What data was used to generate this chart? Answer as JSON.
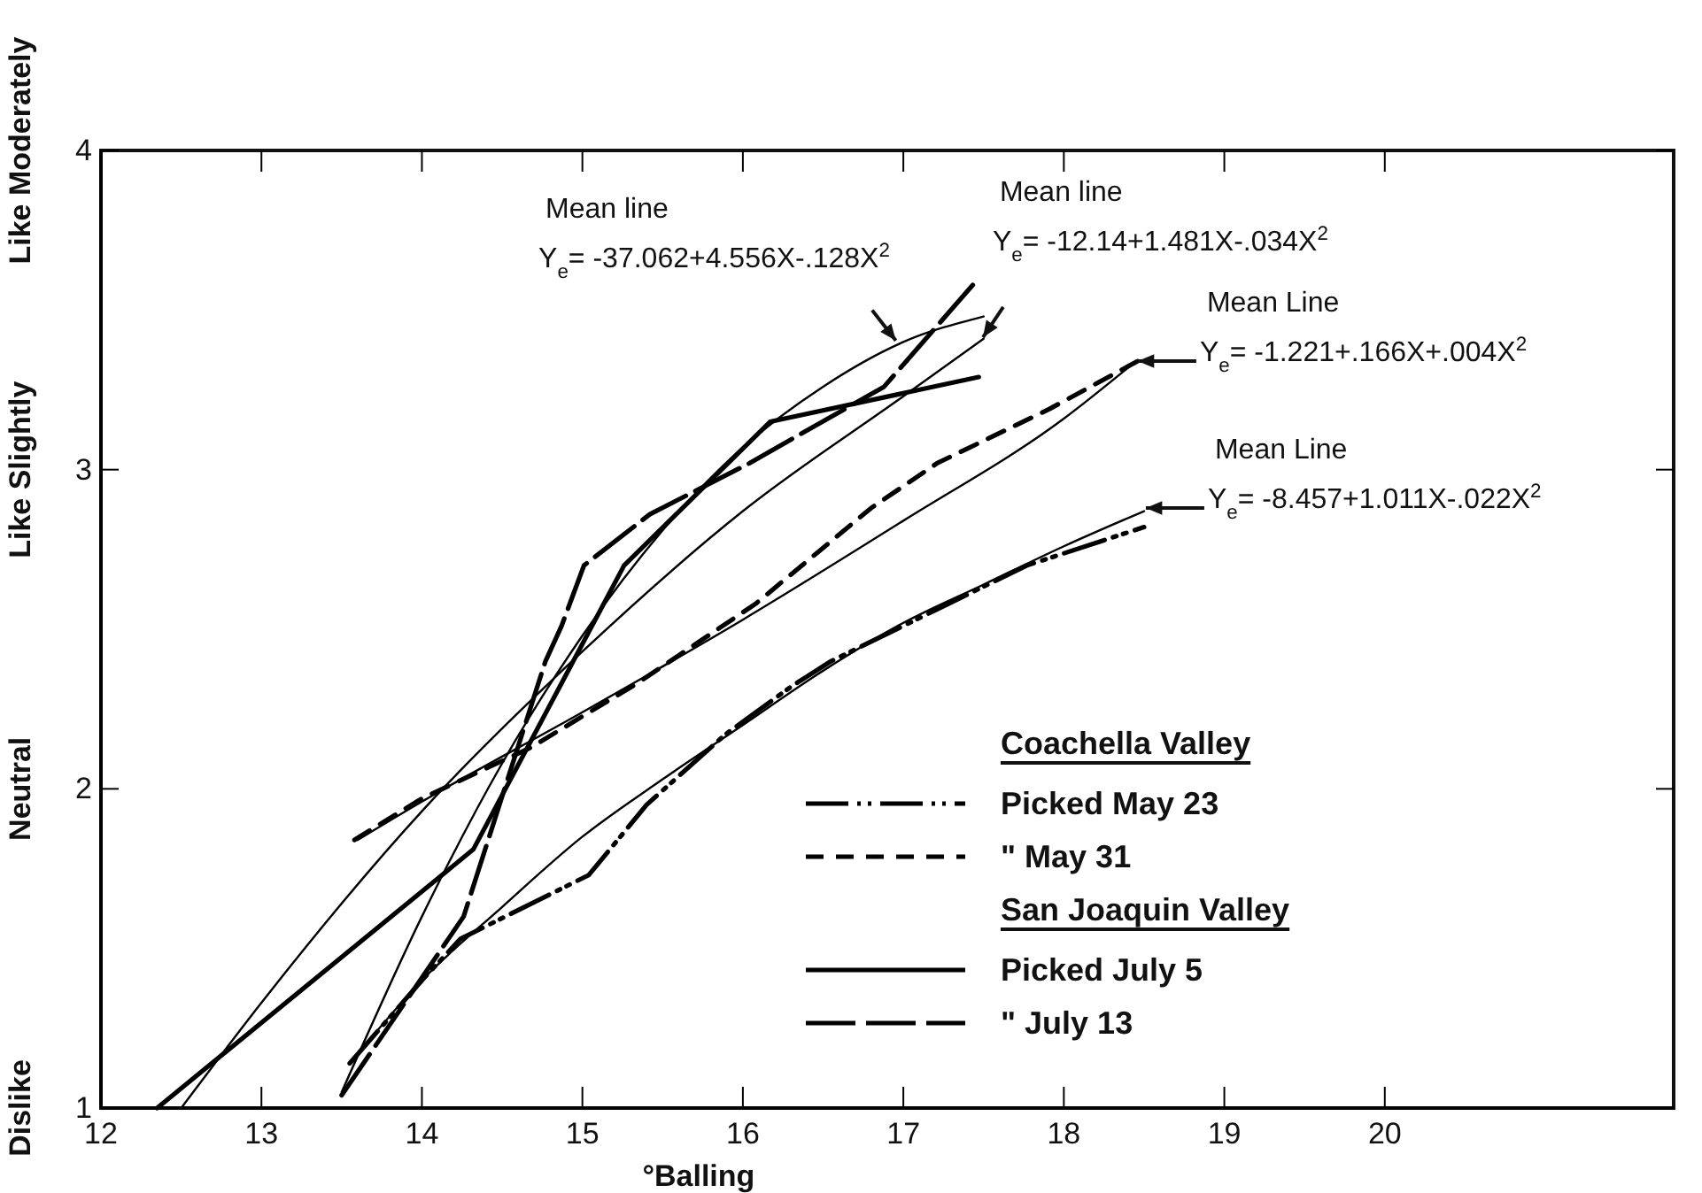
{
  "chart_data": {
    "type": "line",
    "xlabel": "°Balling",
    "xlim": [
      12,
      21.8
    ],
    "xticks": [
      12,
      13,
      14,
      15,
      16,
      17,
      18,
      19,
      20
    ],
    "ylim": [
      1,
      4
    ],
    "yticks": [
      1,
      2,
      3,
      4
    ],
    "grid": false,
    "marker": "none",
    "legend": "bottom right",
    "series": [
      {
        "name": "Picked May 23",
        "color": "#000000",
        "line_style": "dashdotdot",
        "x": [
          13.55,
          14.0,
          14.24,
          14.6,
          15.04,
          15.4,
          15.89,
          16.3,
          16.55,
          17.2,
          17.77,
          18.5
        ],
        "values": [
          1.14,
          1.4,
          1.53,
          1.62,
          1.73,
          1.95,
          2.17,
          2.32,
          2.4,
          2.56,
          2.7,
          2.82
        ]
      },
      {
        "name": "\" May 31",
        "color": "#000000",
        "line_style": "dashed",
        "x": [
          13.58,
          14.0,
          14.68,
          15.34,
          16.08,
          16.8,
          17.21,
          17.91,
          18.46
        ],
        "values": [
          1.84,
          1.97,
          2.13,
          2.33,
          2.58,
          2.88,
          3.02,
          3.19,
          3.34
        ]
      },
      {
        "name": "Picked July 5",
        "color": "#000000",
        "line_style": "solid",
        "x": [
          12.35,
          14.32,
          15.26,
          16.17,
          17.47
        ],
        "values": [
          1.0,
          1.81,
          2.7,
          3.15,
          3.29
        ]
      },
      {
        "name": "\" July 13",
        "color": "#000000",
        "line_style": "longdash",
        "x": [
          13.5,
          14.26,
          14.77,
          14.87,
          15.01,
          15.42,
          16.04,
          16.88,
          17.47
        ],
        "values": [
          1.04,
          1.6,
          2.4,
          2.51,
          2.7,
          2.86,
          3.02,
          3.26,
          3.6
        ]
      },
      {
        "color": "#000000",
        "line_style": "solid",
        "x": [
          13.5,
          14.0,
          14.5,
          15.0,
          15.5,
          16.0,
          16.5,
          17.0,
          17.5
        ],
        "values": [
          1.05,
          1.6,
          2.08,
          2.48,
          2.81,
          3.07,
          3.26,
          3.4,
          3.48
        ]
      },
      {
        "color": "#000000",
        "line_style": "solid",
        "x": [
          12.5,
          13.0,
          14.0,
          15.0,
          16.0,
          17.0,
          17.5
        ],
        "values": [
          1.0,
          1.33,
          1.93,
          2.43,
          2.87,
          3.23,
          3.41
        ]
      },
      {
        "color": "#000000",
        "line_style": "solid",
        "x": [
          13.6,
          14.0,
          15.0,
          16.0,
          17.0,
          18.0,
          18.45
        ],
        "values": [
          1.84,
          1.96,
          2.24,
          2.53,
          2.84,
          3.16,
          3.34
        ]
      },
      {
        "color": "#000000",
        "line_style": "solid",
        "x": [
          13.6,
          14.0,
          14.5,
          15.0,
          15.5,
          16.0,
          16.5,
          17.0,
          17.5,
          18.0,
          18.5
        ],
        "values": [
          1.17,
          1.4,
          1.63,
          1.85,
          2.03,
          2.2,
          2.37,
          2.52,
          2.64,
          2.76,
          2.87
        ]
      }
    ],
    "annotations": [
      {
        "text": "Mean line\nY$_{e}$= -37.062+4.556X-.128X$^{2}$",
        "x": 16.96,
        "y": 3.4
      },
      {
        "text": "Mean line\nY$_{e}$= -12.14+1.481X-.034X$^{2}$",
        "x": 17.49,
        "y": 3.41
      },
      {
        "text": "Mean Line\nY$_{e}$= -1.221+.166X+.004X$^{2}$",
        "x": 18.45,
        "y": 3.34
      },
      {
        "text": "Mean Line\nY$_{e}$= -8.457+1.011X-.022X$^{2}$",
        "x": 18.5,
        "y": 2.88
      },
      "Dislike",
      "Neutral",
      "Like Slightly",
      "Like Moderately",
      "Coachella Valley",
      "San Joaquin Valley"
    ]
  }
}
